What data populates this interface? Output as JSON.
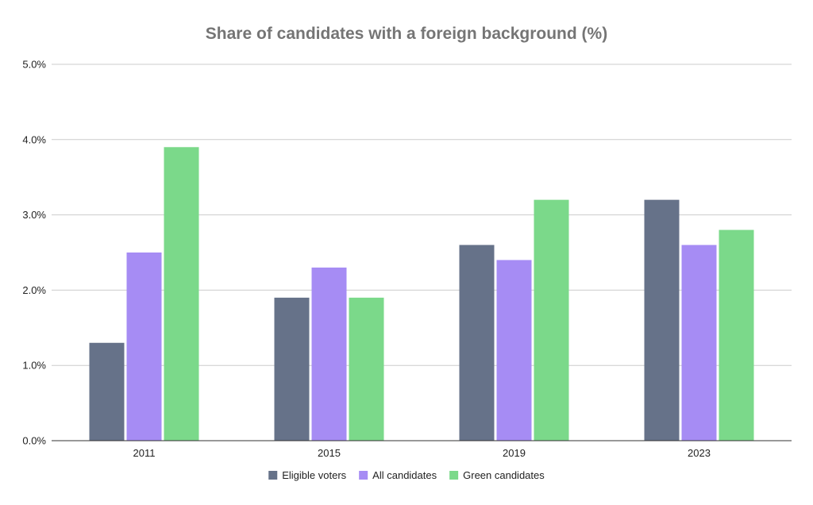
{
  "chart_data": {
    "type": "bar",
    "title": "Share of candidates with a foreign background (%)",
    "xlabel": "",
    "ylabel": "",
    "categories": [
      "2011",
      "2015",
      "2019",
      "2023"
    ],
    "series": [
      {
        "name": "Eligible voters",
        "color": "#667289",
        "values": [
          1.3,
          1.9,
          2.6,
          3.2
        ]
      },
      {
        "name": "All candidates",
        "color": "#a68cf4",
        "values": [
          2.5,
          2.3,
          2.4,
          2.6
        ]
      },
      {
        "name": "Green candidates",
        "color": "#7bd98a",
        "values": [
          3.9,
          1.9,
          3.2,
          2.8
        ]
      }
    ],
    "ylim": [
      0,
      5
    ],
    "yticks": [
      "0.0%",
      "1.0%",
      "2.0%",
      "3.0%",
      "4.0%",
      "5.0%"
    ],
    "grid": true,
    "legend_position": "bottom"
  }
}
